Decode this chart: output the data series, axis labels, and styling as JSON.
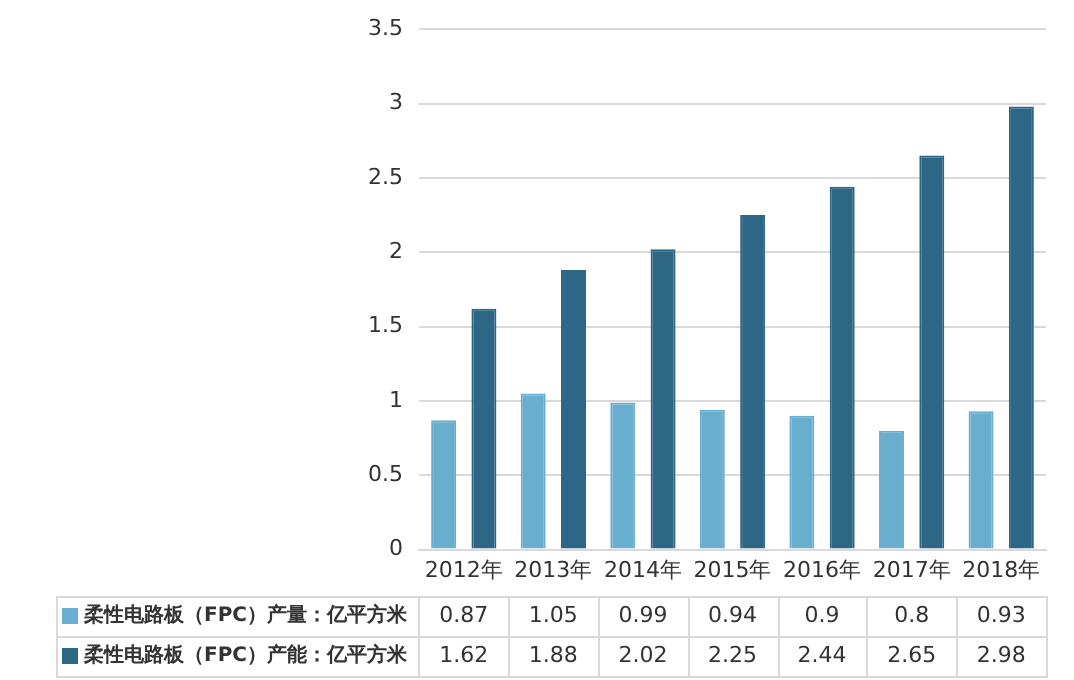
{
  "chart_data": {
    "type": "bar",
    "categories": [
      "2012年",
      "2013年",
      "2014年",
      "2015年",
      "2016年",
      "2017年",
      "2018年"
    ],
    "series": [
      {
        "name": "柔性电路板（FPC）产量：亿平方米",
        "color": "#6aaecf",
        "values": [
          0.87,
          1.05,
          0.99,
          0.94,
          0.9,
          0.8,
          0.93
        ]
      },
      {
        "name": "柔性电路板（FPC）产能：亿平方米",
        "color": "#2e6786",
        "values": [
          1.62,
          1.88,
          2.02,
          2.25,
          2.44,
          2.65,
          2.98
        ]
      }
    ],
    "ylim": [
      0,
      3.5
    ],
    "yticks": [
      0,
      0.5,
      1,
      1.5,
      2,
      2.5,
      3,
      3.5
    ],
    "grid": "y",
    "data_labels": true,
    "legend": "bottom"
  }
}
